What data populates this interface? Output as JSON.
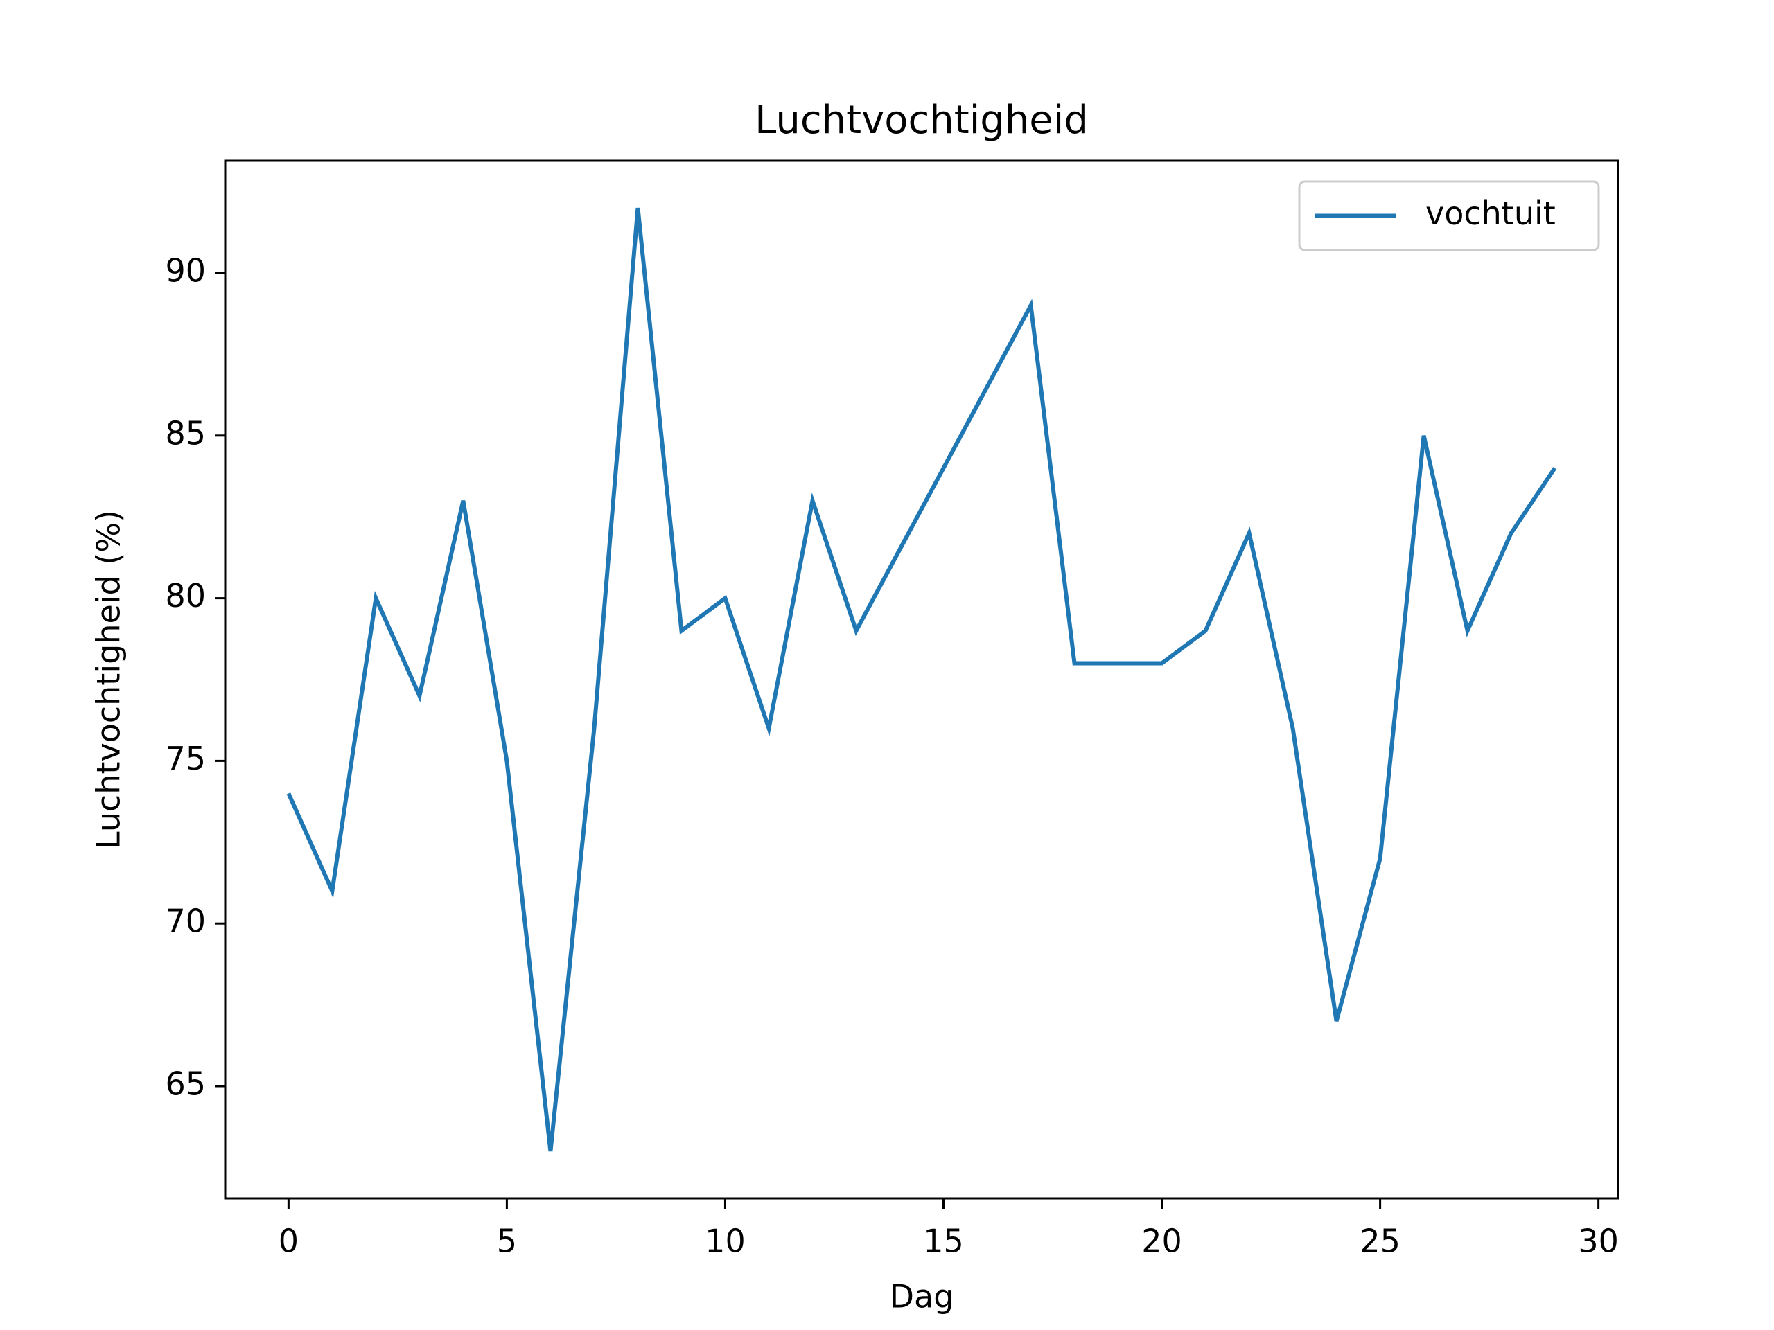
{
  "chart_data": {
    "type": "line",
    "title": "Luchtvochtigheid",
    "x_label": "Dag",
    "y_label": "Luchtvochtigheid (%)",
    "x": [
      0,
      1,
      2,
      3,
      4,
      5,
      6,
      7,
      8,
      9,
      10,
      11,
      12,
      13,
      14,
      15,
      16,
      17,
      18,
      19,
      20,
      21,
      22,
      23,
      24,
      25,
      26,
      27,
      28,
      29
    ],
    "series": [
      {
        "name": "vochtuit",
        "color": "#1f77b4",
        "values": [
          74,
          71,
          80,
          77,
          83,
          75,
          63,
          76,
          92,
          79,
          80,
          76,
          83,
          79,
          81.5,
          84,
          86.5,
          89,
          78,
          78,
          78,
          79,
          82,
          76,
          67,
          72,
          85,
          79,
          82,
          84
        ]
      }
    ],
    "xlim": [
      -1.45,
      30.45
    ],
    "xticks": [
      0,
      5,
      10,
      15,
      20,
      25,
      30
    ],
    "ylim": [
      61.55,
      93.45
    ],
    "yticks": [
      65,
      70,
      75,
      80,
      85,
      90
    ],
    "legend": "upper right"
  }
}
